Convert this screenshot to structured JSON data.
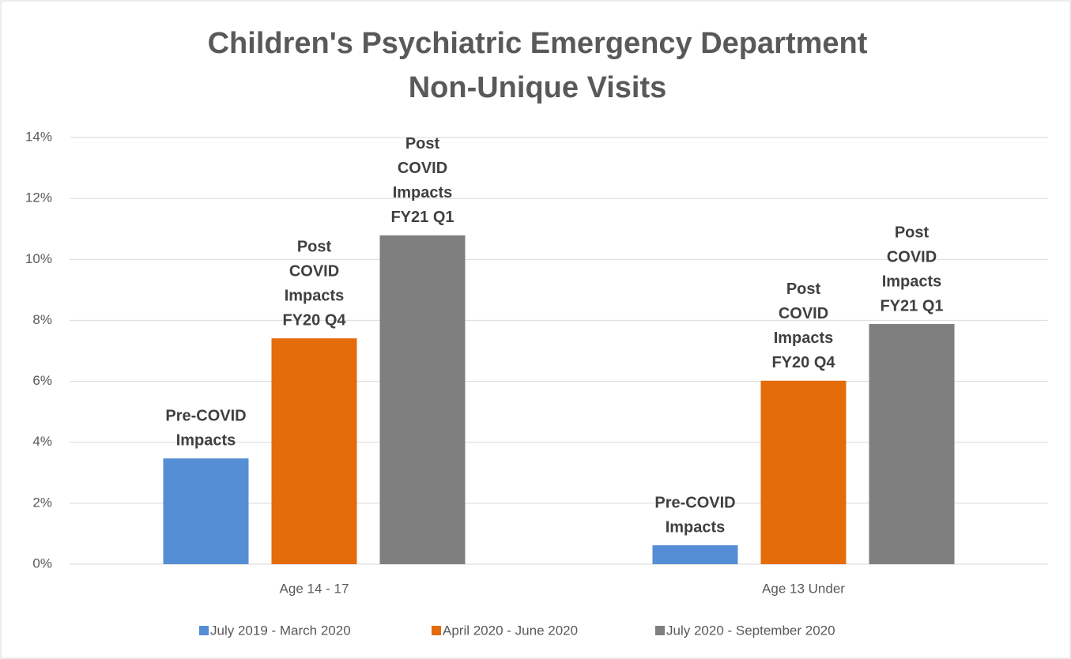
{
  "chart_data": {
    "type": "bar",
    "title": [
      "Children's Psychiatric Emergency Department",
      "Non-Unique Visits"
    ],
    "categories": [
      "Age 14 - 17",
      "Age 13 Under"
    ],
    "series": [
      {
        "name": "July 2019 - March 2020",
        "color": "#558ed5",
        "values": [
          3.47,
          0.62
        ],
        "bar_text": [
          "Pre-COVID",
          "Impacts"
        ]
      },
      {
        "name": "April 2020 - June 2020",
        "color": "#e46c0a",
        "values": [
          7.41,
          6.02
        ],
        "bar_text": [
          "Post",
          "COVID",
          "Impacts",
          "FY20 Q4"
        ]
      },
      {
        "name": "July 2020 - September 2020",
        "color": "#7f7f7f",
        "values": [
          10.79,
          7.88
        ],
        "bar_text": [
          "Post",
          "COVID",
          "Impacts",
          "FY21 Q1"
        ]
      }
    ],
    "ylim": [
      0,
      14
    ],
    "yticks": [
      {
        "value": 0,
        "label": "0%"
      },
      {
        "value": 2,
        "label": "2%"
      },
      {
        "value": 4,
        "label": "4%"
      },
      {
        "value": 6,
        "label": "6%"
      },
      {
        "value": 8,
        "label": "8%"
      },
      {
        "value": 10,
        "label": "10%"
      },
      {
        "value": 12,
        "label": "12%"
      },
      {
        "value": 14,
        "label": "14%"
      }
    ],
    "grid": true,
    "legend": "bottom"
  }
}
